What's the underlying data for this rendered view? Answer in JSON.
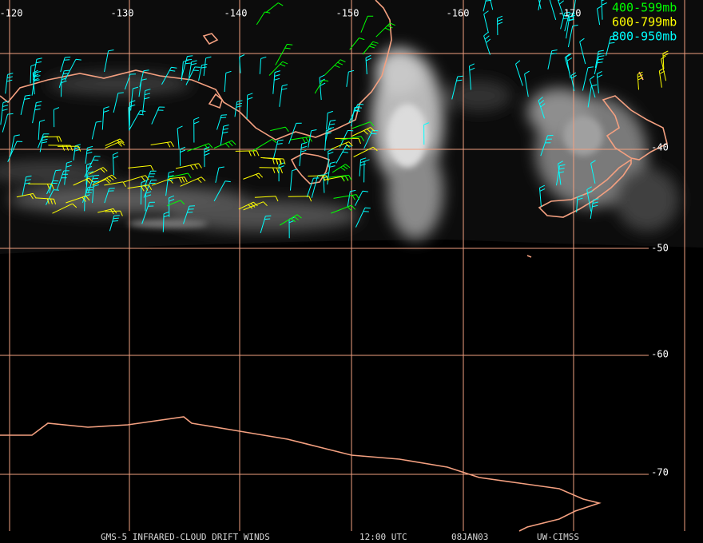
{
  "map": {
    "lon_labels": [
      "-120",
      "-130",
      "-140",
      "-150",
      "-160",
      "-170"
    ],
    "lat_labels": [
      "-40",
      "-50",
      "-60",
      "-70"
    ],
    "legend": [
      "400-599mb",
      "600-799mb",
      "800-950mb"
    ],
    "footer": [
      "GMS-5 INFRARED-CLOUD DRIFT WINDS",
      "12:00 UTC",
      "08JAN03",
      "UW-CIMSS"
    ]
  }
}
